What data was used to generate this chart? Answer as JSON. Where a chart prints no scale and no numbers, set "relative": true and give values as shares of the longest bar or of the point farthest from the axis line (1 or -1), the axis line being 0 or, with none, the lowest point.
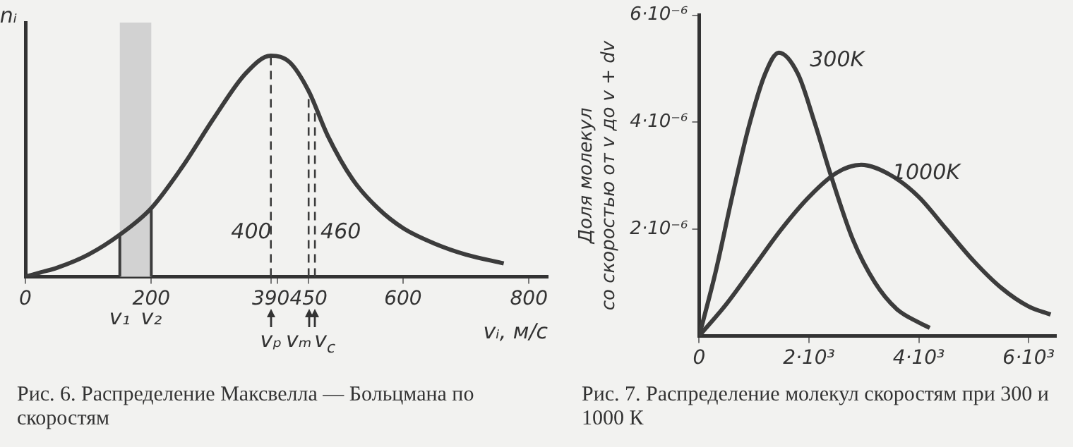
{
  "chart_data": [
    {
      "type": "line",
      "relative": true,
      "color": "#3c3c3c",
      "x": [
        0,
        25,
        50,
        100,
        150,
        200,
        250,
        300,
        350,
        390,
        420,
        450,
        480,
        520,
        560,
        600,
        650,
        700,
        760
      ],
      "values": [
        0,
        0.02,
        0.04,
        0.1,
        0.19,
        0.31,
        0.5,
        0.72,
        0.92,
        1.0,
        0.97,
        0.84,
        0.64,
        0.44,
        0.31,
        0.22,
        0.15,
        0.1,
        0.06
      ],
      "xlim": [
        0,
        830
      ],
      "xticks": [
        0,
        200,
        390,
        {
          "value": 400,
          "label": null
        },
        450,
        600,
        800
      ],
      "tick_labels": "x",
      "ylabel": "nᵢ",
      "xlabel": "vᵢ, м/с",
      "bands": [
        {
          "axis": "x",
          "from": 150,
          "to": 200,
          "color": "#d2d2d2"
        }
      ],
      "ref_lines": [
        {
          "axis": "x",
          "value": 150,
          "label": "v₁",
          "line_style": "solid"
        },
        {
          "axis": "x",
          "value": 200,
          "label": "v₂",
          "line_style": "solid"
        },
        {
          "axis": "x",
          "value": 390,
          "label": "vₚ",
          "line_style": "dashed"
        },
        {
          "axis": "x",
          "value": 450,
          "label": "vₘ",
          "line_style": "dashed"
        },
        {
          "axis": "x",
          "value": 460,
          "label": "v$_{c}$",
          "line_style": "dashed"
        }
      ],
      "annotations": [
        {
          "text": "400",
          "x": 400,
          "y": 0.2
        },
        {
          "text": "460",
          "x": 460,
          "y": 0.2
        },
        "Рис. 6. Распределение Максвелла — Больцмана по скоростям"
      ]
    },
    {
      "type": "line",
      "xlim": [
        0,
        6500
      ],
      "ylim": [
        0,
        6e-06
      ],
      "xticks": [
        0,
        {
          "value": 2000,
          "label": "2·10³"
        },
        {
          "value": 4000,
          "label": "4·10³"
        },
        {
          "value": 6000,
          "label": "6·10³"
        }
      ],
      "yticks": [
        {
          "value": 2e-06,
          "label": "2·10⁻⁶"
        },
        {
          "value": 4e-06,
          "label": "4·10⁻⁶"
        },
        {
          "value": 6e-06,
          "label": "6·10⁻⁶"
        }
      ],
      "ylabel": "Доля молекул\nсо скоростью от v до v + dv",
      "series": [
        {
          "name": "300K",
          "color": "#3c3c3c",
          "x": [
            0,
            300,
            600,
            900,
            1200,
            1450,
            1800,
            2100,
            2400,
            2800,
            3200,
            3600,
            4000,
            4200
          ],
          "values": [
            0,
            1.2e-06,
            2.6e-06,
            3.9e-06,
            4.9e-06,
            5.3e-06,
            4.9e-06,
            4e-06,
            3e-06,
            1.8e-06,
            1e-06,
            5e-07,
            2.5e-07,
            1.5e-07
          ]
        },
        {
          "name": "1000K",
          "color": "#3c3c3c",
          "x": [
            0,
            500,
            1000,
            1500,
            2000,
            2500,
            2950,
            3500,
            4000,
            4500,
            5000,
            5500,
            6000,
            6400
          ],
          "values": [
            0,
            6e-07,
            1.3e-06,
            2e-06,
            2.6e-06,
            3.05e-06,
            3.2e-06,
            3e-06,
            2.6e-06,
            2e-06,
            1.4e-06,
            9e-07,
            5.5e-07,
            4e-07
          ]
        }
      ],
      "annotations": [
        "Рис. 7. Распределение молекул скоростям при 300 и 1000 К"
      ]
    }
  ]
}
